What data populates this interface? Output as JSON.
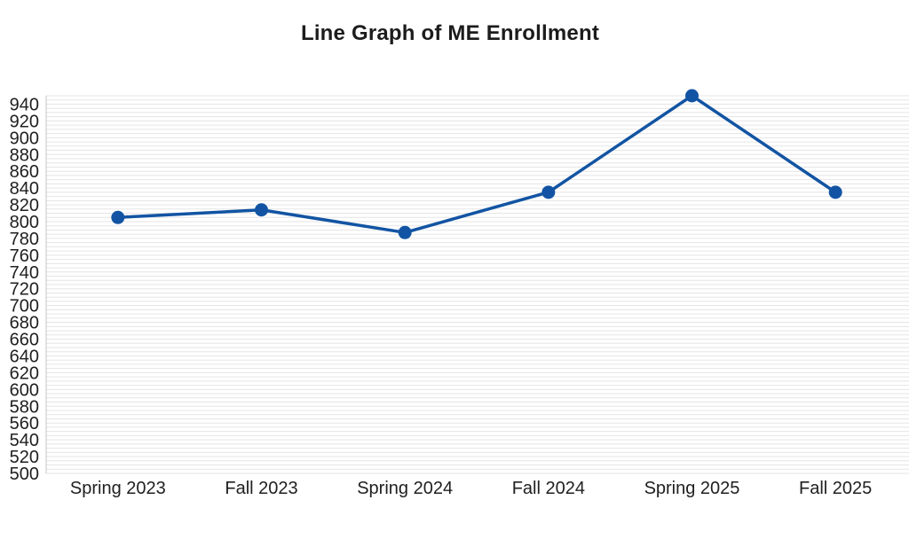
{
  "title": "Line Graph of ME Enrollment",
  "chart_data": {
    "type": "line",
    "title": "Line Graph of ME Enrollment",
    "categories": [
      "Spring 2023",
      "Fall 2023",
      "Spring 2024",
      "Fall 2024",
      "Spring 2025",
      "Fall 2025"
    ],
    "series": [
      {
        "name": "ME Enrollment",
        "values": [
          805,
          814,
          787,
          835,
          950,
          835
        ]
      }
    ],
    "xlabel": "",
    "ylabel": "",
    "ylim": [
      500,
      950
    ],
    "y_tick_labels": [
      940,
      920,
      900,
      880,
      860,
      840,
      820,
      800,
      780,
      760,
      740,
      720,
      700,
      680,
      660,
      640,
      620,
      600,
      580,
      560,
      540,
      520,
      500
    ],
    "y_major_step": 20,
    "y_minor_step": 5,
    "grid": "horizontal-minor",
    "legend": "none",
    "colors": {
      "line": "#1254a3",
      "marker": "#1254a3",
      "gridline": "#e5e5e5",
      "axis_line": "#c4c4c4",
      "text": "#202020",
      "background": "#ffffff"
    }
  }
}
